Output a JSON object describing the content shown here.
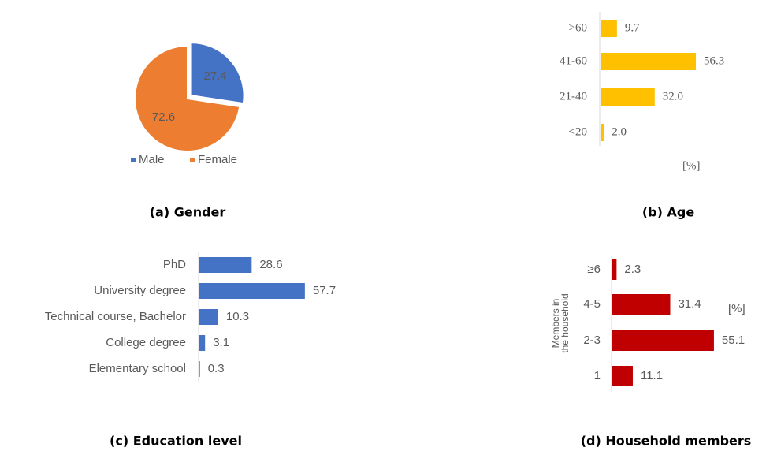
{
  "chart_data": [
    {
      "type": "pie",
      "title": "(a) Gender",
      "categories": [
        "Male",
        "Female"
      ],
      "values": [
        27.4,
        72.6
      ],
      "colors": [
        "#4472c4",
        "#ed7d31"
      ],
      "legend": "bottom"
    },
    {
      "type": "hbar",
      "title": "(b) Age",
      "categories": [
        ">60",
        "41-60",
        "21-40",
        "<20"
      ],
      "values": [
        9.7,
        56.3,
        32.0,
        2.0
      ],
      "value_labels": [
        "9.7",
        "56.3",
        "32.0",
        "2.0"
      ],
      "color": "#ffc000",
      "xlim": [
        0,
        60
      ],
      "unit_label": "[%]"
    },
    {
      "type": "hbar",
      "title": "(c) Education level",
      "categories": [
        "PhD",
        "University degree",
        "Technical course, Bachelor",
        "College degree",
        "Elementary school"
      ],
      "values": [
        28.6,
        57.7,
        10.3,
        3.1,
        0.3
      ],
      "color": "#4472c4",
      "xlim": [
        0,
        60
      ]
    },
    {
      "type": "hbar",
      "title": "(d) Household members",
      "categories": [
        "≥6",
        "4-5",
        "2-3",
        "1"
      ],
      "values": [
        2.3,
        31.4,
        55.1,
        11.1
      ],
      "color": "#c00000",
      "xlim": [
        0,
        60
      ],
      "unit_label": "[%]",
      "ylabel": [
        "Members in",
        "the household"
      ]
    }
  ]
}
